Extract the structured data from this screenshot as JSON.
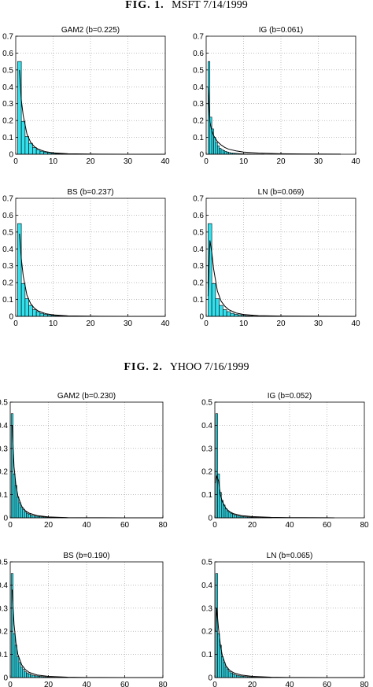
{
  "figures": [
    {
      "label": "FIG. 1.",
      "subtitle": "MSFT 7/14/1999",
      "chart_data": [
        {
          "type": "bar",
          "title": "GAM2 (b=0.225)",
          "xlim": [
            0,
            40
          ],
          "ylim": [
            0,
            0.7
          ],
          "xticks": [
            0,
            10,
            20,
            30,
            40
          ],
          "yticks": [
            0,
            0.1,
            0.2,
            0.3,
            0.4,
            0.5,
            0.6,
            0.7
          ],
          "grid": true,
          "bin_width": 1,
          "bin_edges_start": 0.5,
          "histogram": [
            0.55,
            0.195,
            0.105,
            0.065,
            0.04,
            0.028,
            0.018,
            0.012,
            0.009,
            0.006,
            0.004,
            0.003,
            0.002,
            0.002,
            0.0015,
            0.001,
            0.001,
            0.0008,
            0.0006,
            0.0005
          ],
          "fit_curve": {
            "x": [
              1,
              1.5,
              2,
              3,
              4,
              5,
              6,
              8,
              10,
              14,
              20,
              30,
              40
            ],
            "y": [
              0.5,
              0.32,
              0.23,
              0.12,
              0.07,
              0.045,
              0.03,
              0.015,
              0.008,
              0.003,
              0.001,
              0.0002,
              0
            ]
          }
        },
        {
          "type": "bar",
          "title": "IG (b=0.061)",
          "xlim": [
            0,
            40
          ],
          "ylim": [
            0,
            0.7
          ],
          "xticks": [
            0,
            10,
            20,
            30,
            40
          ],
          "yticks": [
            0,
            0.1,
            0.2,
            0.3,
            0.4,
            0.5,
            0.6,
            0.7
          ],
          "grid": true,
          "bin_width": 0.5,
          "bin_edges_start": 0.5,
          "histogram": [
            0.55,
            0.22,
            0.15,
            0.1,
            0.07,
            0.05,
            0.035,
            0.028,
            0.022,
            0.017,
            0.013,
            0.01,
            0.008,
            0.007,
            0.006,
            0.005,
            0.004,
            0.0035,
            0.003,
            0.0025,
            0.002,
            0.002,
            0.0018,
            0.0015,
            0.0013,
            0.0012,
            0.001,
            0.001,
            0.0009,
            0.0008
          ],
          "fit_curve": {
            "x": [
              0.5,
              1,
              1.5,
              2,
              3,
              4,
              5,
              6,
              8,
              10,
              14,
              20,
              30,
              36
            ],
            "y": [
              0.4,
              0.19,
              0.14,
              0.11,
              0.075,
              0.055,
              0.04,
              0.03,
              0.02,
              0.013,
              0.007,
              0.003,
              0.001,
              0.0005
            ]
          }
        },
        {
          "type": "bar",
          "title": "BS (b=0.237)",
          "xlim": [
            0,
            40
          ],
          "ylim": [
            0,
            0.7
          ],
          "xticks": [
            0,
            10,
            20,
            30,
            40
          ],
          "yticks": [
            0,
            0.1,
            0.2,
            0.3,
            0.4,
            0.5,
            0.6,
            0.7
          ],
          "grid": true,
          "bin_width": 1,
          "bin_edges_start": 0.5,
          "histogram": [
            0.55,
            0.195,
            0.105,
            0.065,
            0.04,
            0.028,
            0.018,
            0.012,
            0.009,
            0.006,
            0.004,
            0.003,
            0.002,
            0.002,
            0.0015,
            0.001,
            0.001,
            0.0008,
            0.0006,
            0.0005
          ],
          "fit_curve": {
            "x": [
              1,
              1.5,
              2,
              3,
              4,
              5,
              6,
              8,
              10,
              14,
              20,
              30,
              40
            ],
            "y": [
              0.49,
              0.34,
              0.24,
              0.125,
              0.075,
              0.048,
              0.032,
              0.016,
              0.009,
              0.003,
              0.001,
              0.0002,
              0
            ]
          }
        },
        {
          "type": "bar",
          "title": "LN (b=0.069)",
          "xlim": [
            0,
            40
          ],
          "ylim": [
            0,
            0.7
          ],
          "xticks": [
            0,
            10,
            20,
            30,
            40
          ],
          "yticks": [
            0,
            0.1,
            0.2,
            0.3,
            0.4,
            0.5,
            0.6,
            0.7
          ],
          "grid": true,
          "bin_width": 1,
          "bin_edges_start": 0.5,
          "histogram": [
            0.55,
            0.195,
            0.105,
            0.065,
            0.04,
            0.028,
            0.018,
            0.012,
            0.009,
            0.006,
            0.004,
            0.003,
            0.002,
            0.002,
            0.0015,
            0.001,
            0.001,
            0.0008,
            0.0006,
            0.0005
          ],
          "fit_curve": {
            "x": [
              0.5,
              1,
              1.5,
              2,
              3,
              4,
              5,
              6,
              8,
              10,
              14,
              20,
              30,
              40
            ],
            "y": [
              0.12,
              0.45,
              0.38,
              0.28,
              0.15,
              0.09,
              0.06,
              0.04,
              0.02,
              0.011,
              0.004,
              0.0015,
              0.0004,
              0.0001
            ]
          }
        }
      ]
    },
    {
      "label": "FIG. 2.",
      "subtitle": "YHOO 7/16/1999",
      "chart_data": [
        {
          "type": "bar",
          "title": "GAM2 (b=0.230)",
          "xlim": [
            0,
            80
          ],
          "ylim": [
            0,
            0.5
          ],
          "xticks": [
            0,
            20,
            40,
            60,
            80
          ],
          "yticks": [
            0,
            0.1,
            0.2,
            0.3,
            0.4,
            0.5
          ],
          "grid": true,
          "bin_width": 1,
          "bin_edges_start": 0.5,
          "histogram": [
            0.45,
            0.19,
            0.14,
            0.09,
            0.065,
            0.045,
            0.035,
            0.025,
            0.02,
            0.016,
            0.012,
            0.01,
            0.008,
            0.007,
            0.006,
            0.005,
            0.004,
            0.0035,
            0.003,
            0.0025,
            0.002,
            0.002,
            0.0018,
            0.0015,
            0.0013,
            0.0012,
            0.001,
            0.001,
            0.0009,
            0.0008
          ],
          "fit_curve": {
            "x": [
              1,
              2,
              3,
              4,
              6,
              8,
              10,
              14,
              20,
              30,
              40,
              60,
              80
            ],
            "y": [
              0.4,
              0.22,
              0.14,
              0.095,
              0.05,
              0.03,
              0.02,
              0.01,
              0.004,
              0.001,
              0.0004,
              0.0001,
              0
            ]
          }
        },
        {
          "type": "bar",
          "title": "IG (b=0.052)",
          "xlim": [
            0,
            80
          ],
          "ylim": [
            0,
            0.5
          ],
          "xticks": [
            0,
            20,
            40,
            60,
            80
          ],
          "yticks": [
            0,
            0.1,
            0.2,
            0.3,
            0.4,
            0.5
          ],
          "grid": true,
          "bin_width": 1,
          "bin_edges_start": 0.5,
          "histogram": [
            0.45,
            0.19,
            0.11,
            0.075,
            0.055,
            0.04,
            0.03,
            0.024,
            0.019,
            0.015,
            0.012,
            0.01,
            0.008,
            0.007,
            0.006,
            0.005,
            0.004,
            0.0035,
            0.003,
            0.0025,
            0.002,
            0.002,
            0.0018,
            0.0015,
            0.0013,
            0.0012,
            0.001,
            0.001,
            0.0009,
            0.0008
          ],
          "fit_curve": {
            "x": [
              0.5,
              1,
              2,
              3,
              4,
              6,
              8,
              10,
              14,
              20,
              30,
              40,
              60,
              64
            ],
            "y": [
              0.15,
              0.18,
              0.16,
              0.1,
              0.07,
              0.04,
              0.026,
              0.018,
              0.01,
              0.005,
              0.002,
              0.001,
              0.0003,
              0.0002
            ]
          }
        },
        {
          "type": "bar",
          "title": "BS (b=0.190)",
          "xlim": [
            0,
            80
          ],
          "ylim": [
            0,
            0.5
          ],
          "xticks": [
            0,
            20,
            40,
            60,
            80
          ],
          "yticks": [
            0,
            0.1,
            0.2,
            0.3,
            0.4,
            0.5
          ],
          "grid": true,
          "bin_width": 1,
          "bin_edges_start": 0.5,
          "histogram": [
            0.45,
            0.19,
            0.14,
            0.09,
            0.065,
            0.045,
            0.035,
            0.025,
            0.02,
            0.016,
            0.012,
            0.01,
            0.008,
            0.007,
            0.006,
            0.005,
            0.004,
            0.0035,
            0.003,
            0.0025,
            0.002,
            0.002,
            0.0018,
            0.0015,
            0.0013,
            0.0012,
            0.001,
            0.001,
            0.0009,
            0.0008
          ],
          "fit_curve": {
            "x": [
              1,
              2,
              3,
              4,
              6,
              8,
              10,
              14,
              20,
              30,
              40,
              60,
              80
            ],
            "y": [
              0.38,
              0.23,
              0.15,
              0.1,
              0.055,
              0.034,
              0.022,
              0.011,
              0.005,
              0.0015,
              0.0005,
              0.0001,
              0
            ]
          }
        },
        {
          "type": "bar",
          "title": "LN (b=0.065)",
          "xlim": [
            0,
            80
          ],
          "ylim": [
            0,
            0.5
          ],
          "xticks": [
            0,
            20,
            40,
            60,
            80
          ],
          "yticks": [
            0,
            0.1,
            0.2,
            0.3,
            0.4,
            0.5
          ],
          "grid": true,
          "bin_width": 1,
          "bin_edges_start": 0.5,
          "histogram": [
            0.45,
            0.19,
            0.14,
            0.09,
            0.065,
            0.045,
            0.035,
            0.025,
            0.02,
            0.016,
            0.012,
            0.01,
            0.008,
            0.007,
            0.006,
            0.005,
            0.004,
            0.0035,
            0.003,
            0.0025,
            0.002,
            0.002,
            0.0018,
            0.0015,
            0.0013,
            0.0012,
            0.001,
            0.001,
            0.0009,
            0.0008
          ],
          "fit_curve": {
            "x": [
              0.5,
              1,
              2,
              3,
              4,
              6,
              8,
              10,
              14,
              20,
              30,
              40,
              60,
              80
            ],
            "y": [
              0.2,
              0.3,
              0.21,
              0.14,
              0.095,
              0.05,
              0.031,
              0.021,
              0.011,
              0.005,
              0.0017,
              0.0006,
              0.0001,
              0
            ]
          }
        }
      ]
    }
  ],
  "style": {
    "bar_fill": "#33e0ee",
    "bar_stroke": "#000000",
    "curve_color": "#000000",
    "grid_color": "#9a9a9a",
    "axis_color": "#000000"
  }
}
